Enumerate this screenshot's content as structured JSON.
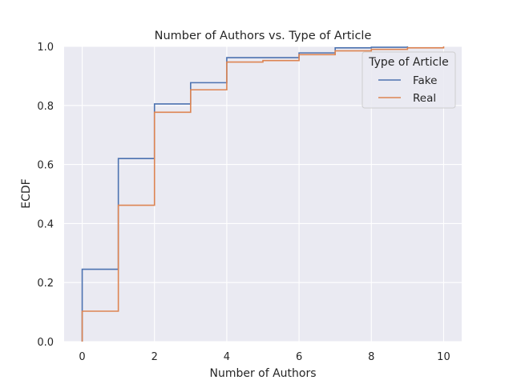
{
  "chart_data": {
    "type": "line",
    "step": true,
    "title": "Number of Authors vs. Type of Article",
    "xlabel": "Number of Authors",
    "ylabel": "ECDF",
    "xlim": [
      -0.5,
      10.5
    ],
    "ylim": [
      0,
      1
    ],
    "xticks": [
      "0",
      "2",
      "4",
      "6",
      "8",
      "10"
    ],
    "yticks": [
      "0.0",
      "0.2",
      "0.4",
      "0.6",
      "0.8",
      "1.0"
    ],
    "grid": true,
    "legend": {
      "title": "Type of Article",
      "position": "top-right"
    },
    "background": "#eaeaf2",
    "series": [
      {
        "name": "Fake",
        "color": "#4c72b0",
        "x": [
          0,
          1,
          2,
          3,
          4,
          5,
          6,
          7,
          8,
          9
        ],
        "y": [
          0.245,
          0.62,
          0.805,
          0.877,
          0.962,
          0.962,
          0.978,
          0.995,
          0.997,
          1.0
        ]
      },
      {
        "name": "Real",
        "color": "#dd8452",
        "x": [
          0,
          1,
          2,
          3,
          4,
          5,
          6,
          7,
          8,
          9,
          10
        ],
        "y": [
          0.103,
          0.462,
          0.777,
          0.853,
          0.947,
          0.952,
          0.972,
          0.985,
          0.99,
          0.995,
          1.0
        ]
      }
    ]
  }
}
